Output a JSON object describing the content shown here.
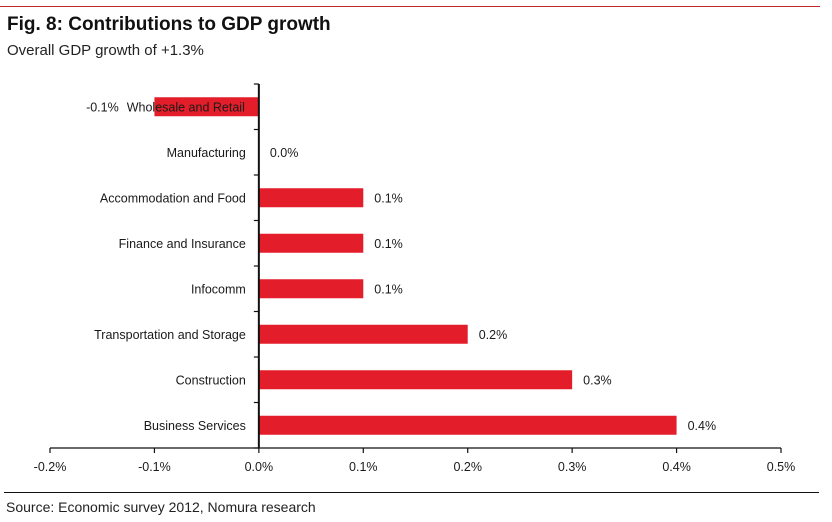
{
  "header": {
    "title": "Fig. 8: Contributions to GDP growth",
    "subtitle": "Overall GDP  growth of +1.3%"
  },
  "footer": {
    "source": "Source: Economic survey 2012, Nomura research"
  },
  "colors": {
    "bar": "#e31e2a",
    "rule": "#c0282d",
    "axis": "#111111"
  },
  "chart_data": {
    "type": "bar",
    "orientation": "horizontal",
    "title": "Fig. 8: Contributions to GDP growth",
    "subtitle": "Overall GDP  growth of +1.3%",
    "xlabel": "",
    "ylabel": "",
    "xlim": [
      -0.2,
      0.5
    ],
    "x_ticks": [
      -0.2,
      -0.1,
      0.0,
      0.1,
      0.2,
      0.3,
      0.4,
      0.5
    ],
    "x_tick_labels": [
      "-0.2%",
      "-0.1%",
      "0.0%",
      "0.1%",
      "0.2%",
      "0.3%",
      "0.4%",
      "0.5%"
    ],
    "grid": false,
    "legend": "none",
    "categories": [
      "Wholesale and Retail",
      "Manufacturing",
      "Accommodation and Food",
      "Finance and Insurance",
      "Infocomm",
      "Transportation and Storage",
      "Construction",
      "Business Services"
    ],
    "values": [
      -0.1,
      0.0,
      0.1,
      0.1,
      0.1,
      0.2,
      0.3,
      0.4
    ],
    "data_labels": [
      "-0.1%",
      "0.0%",
      "0.1%",
      "0.1%",
      "0.1%",
      "0.2%",
      "0.3%",
      "0.4%"
    ],
    "unit": "%"
  }
}
